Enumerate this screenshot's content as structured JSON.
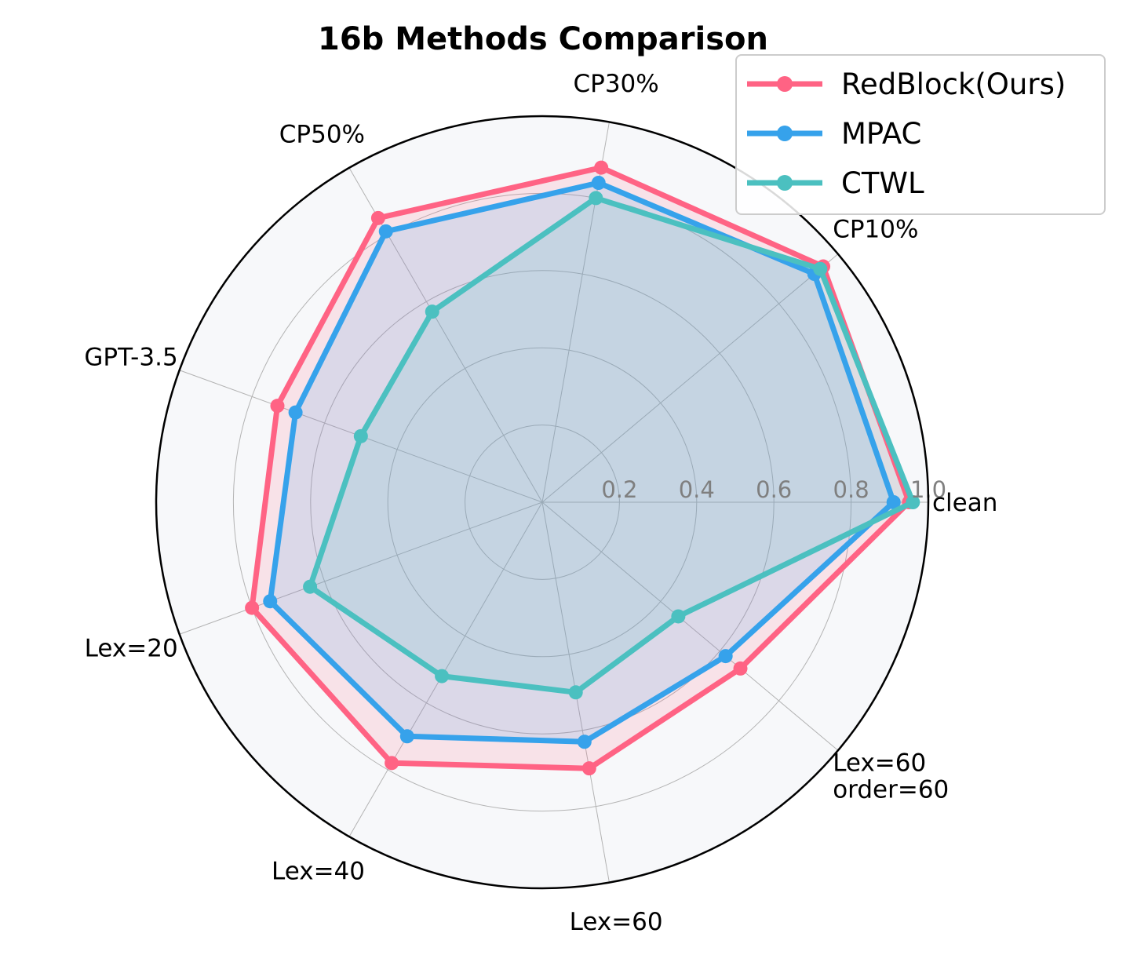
{
  "chart_data": {
    "type": "radar",
    "title": "16b Methods Comparison",
    "axes": [
      "clean",
      "CP10%",
      "CP30%",
      "CP50%",
      "GPT-3.5",
      "Lex=20",
      "Lex=40",
      "Lex=60",
      "Lex=60\norder=60"
    ],
    "rlim": [
      0,
      1.0
    ],
    "r_ticks": [
      "0.2",
      "0.4",
      "0.6",
      "0.8",
      "1.0"
    ],
    "grid": true,
    "legend_position": "top-right",
    "series": [
      {
        "name": "RedBlock(Ours)",
        "color": "#ff6384",
        "values": [
          0.95,
          0.95,
          0.88,
          0.85,
          0.73,
          0.8,
          0.78,
          0.7,
          0.67
        ]
      },
      {
        "name": "MPAC",
        "color": "#36a2eb",
        "values": [
          0.91,
          0.92,
          0.84,
          0.81,
          0.68,
          0.75,
          0.7,
          0.63,
          0.62
        ]
      },
      {
        "name": "CTWL",
        "color": "#4bc0c0",
        "values": [
          0.96,
          0.94,
          0.8,
          0.57,
          0.5,
          0.64,
          0.52,
          0.5,
          0.46
        ]
      }
    ]
  }
}
